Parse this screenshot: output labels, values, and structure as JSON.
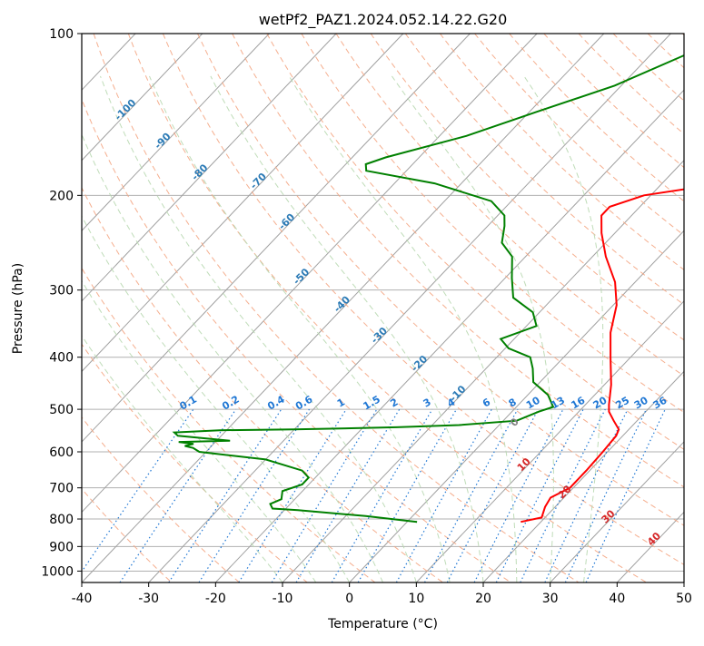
{
  "chart_data": {
    "type": "line",
    "subtype": "skew-t log-p diagram",
    "title": "wetPf2_PAZ1.2024.052.14.22.G20",
    "xlabel": "Temperature (°C)",
    "ylabel": "Pressure (hPa)",
    "xlim": [
      -40,
      50
    ],
    "ylim": [
      1050,
      100
    ],
    "y_scale": "log",
    "grid": true,
    "x_ticks": [
      -40,
      -30,
      -20,
      -10,
      0,
      10,
      20,
      30,
      40,
      50
    ],
    "y_ticks": [
      100,
      200,
      300,
      400,
      500,
      600,
      700,
      800,
      900,
      1000
    ],
    "background_lines": {
      "isotherms_color": "#a0a0a0",
      "dry_adiabats_color": "#f4a582",
      "moist_adiabats_color": "#b8d8b0",
      "mixing_ratio_color": "#1f77d4",
      "mixing_ratio_labels": [
        "0.1",
        "0.2",
        "0.4",
        "0.6",
        "1",
        "1.5",
        "2",
        "3",
        "4",
        "6",
        "8",
        "10",
        "13",
        "16",
        "20",
        "25",
        "30",
        "36"
      ]
    },
    "annotations": {
      "temperature_labels": [
        "-100",
        "-90",
        "-80",
        "-70",
        "-60",
        "-50",
        "-40",
        "-30",
        "-20",
        "-10"
      ],
      "gray_labels": [
        "0"
      ],
      "red_labels": [
        "10",
        "20",
        "30",
        "40"
      ]
    },
    "series": [
      {
        "color": "#ff0000",
        "role": "temperature",
        "points": [
          [
            17,
            810
          ],
          [
            19.5,
            795
          ],
          [
            18.5,
            760
          ],
          [
            18,
            730
          ],
          [
            19.5,
            700
          ],
          [
            19.5,
            650
          ],
          [
            19.3,
            600
          ],
          [
            19,
            560
          ],
          [
            18.5,
            545
          ],
          [
            16.5,
            525
          ],
          [
            14.5,
            505
          ],
          [
            13.5,
            490
          ],
          [
            11,
            450
          ],
          [
            7,
            400
          ],
          [
            3.5,
            360
          ],
          [
            0.5,
            320
          ],
          [
            -3,
            290
          ],
          [
            -8,
            260
          ],
          [
            -12,
            235
          ],
          [
            -14.5,
            218
          ],
          [
            -14.5,
            210
          ],
          [
            -11,
            200
          ],
          [
            -3,
            192
          ],
          [
            -1,
            180
          ],
          [
            -2,
            165
          ],
          [
            -3,
            150
          ],
          [
            -5.5,
            130
          ],
          [
            -8,
            118
          ],
          [
            -10,
            110
          ],
          [
            -11.5,
            100
          ]
        ]
      },
      {
        "color": "#008000",
        "role": "dewpoint",
        "points": [
          [
            1.5,
            810
          ],
          [
            -7,
            790
          ],
          [
            -18,
            770
          ],
          [
            -22,
            765
          ],
          [
            -23,
            750
          ],
          [
            -22,
            735
          ],
          [
            -23,
            710
          ],
          [
            -21,
            690
          ],
          [
            -21,
            670
          ],
          [
            -23,
            650
          ],
          [
            -30,
            620
          ],
          [
            -41,
            600
          ],
          [
            -42.5,
            590
          ],
          [
            -44,
            585
          ],
          [
            -43,
            580
          ],
          [
            -45.5,
            575
          ],
          [
            -38,
            572
          ],
          [
            -46.5,
            560
          ],
          [
            -47.5,
            552
          ],
          [
            -41,
            547
          ],
          [
            -30,
            545
          ],
          [
            -15,
            540
          ],
          [
            -6,
            535
          ],
          [
            2,
            525
          ],
          [
            4,
            505
          ],
          [
            5.5,
            495
          ],
          [
            3,
            470
          ],
          [
            -1,
            445
          ],
          [
            -3,
            420
          ],
          [
            -5,
            400
          ],
          [
            -9.5,
            385
          ],
          [
            -12,
            370
          ],
          [
            -8.5,
            350
          ],
          [
            -11,
            330
          ],
          [
            -16,
            310
          ],
          [
            -19,
            285
          ],
          [
            -22,
            260
          ],
          [
            -25.5,
            245
          ],
          [
            -27.5,
            228
          ],
          [
            -29,
            218
          ],
          [
            -33,
            205
          ],
          [
            -44,
            190
          ],
          [
            -56,
            180
          ],
          [
            -57,
            175
          ],
          [
            -55,
            170
          ],
          [
            -46,
            155
          ],
          [
            -39,
            140
          ],
          [
            -31,
            125
          ],
          [
            -25,
            110
          ],
          [
            -19.5,
            100
          ]
        ]
      }
    ]
  }
}
